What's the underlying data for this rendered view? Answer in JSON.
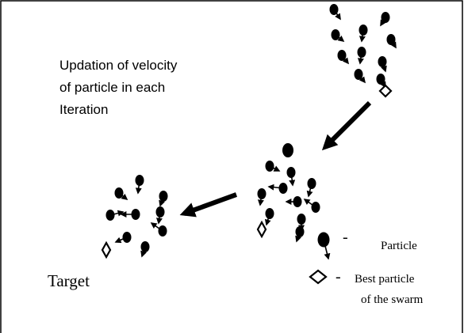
{
  "caption": {
    "lines": [
      "Updation of velocity",
      "of particle in each",
      "Iteration"
    ]
  },
  "target": "Target",
  "legend": {
    "particle": {
      "dash": "-",
      "label": "Particle"
    },
    "best": {
      "dash": "-",
      "lines": [
        "Best particle",
        "of the swarm"
      ]
    }
  }
}
